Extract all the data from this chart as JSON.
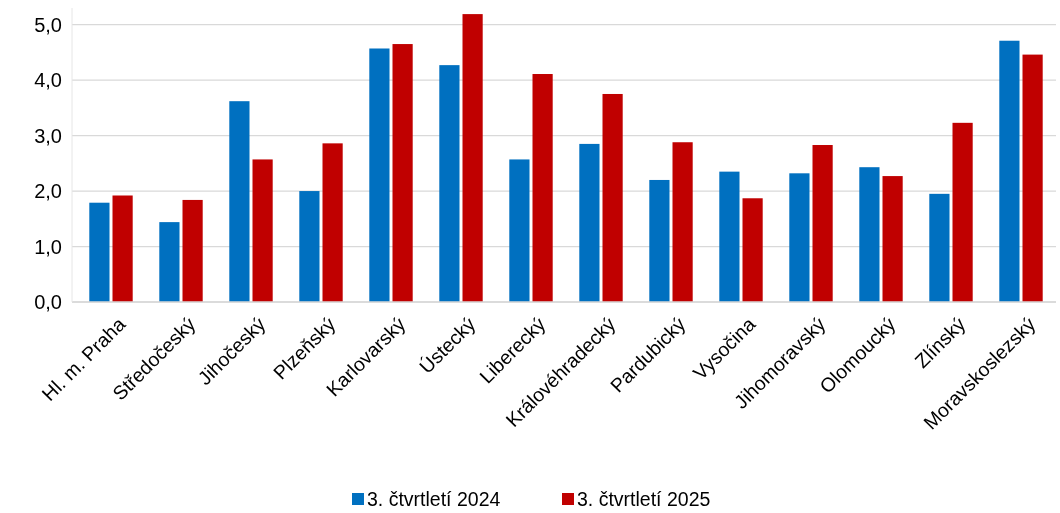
{
  "chart_data": {
    "type": "bar",
    "categories": [
      "Hl. m. Praha",
      "Středočeský",
      "Jihočeský",
      "Plzeňský",
      "Karlovarský",
      "Ústecký",
      "Liberecký",
      "Královéhradecký",
      "Pardubický",
      "Vysočina",
      "Jihomoravský",
      "Olomoucký",
      "Zlínský",
      "Moravskoslezský"
    ],
    "series": [
      {
        "name": "3. čtvrtletí 2024",
        "color": "#0070c0",
        "values": [
          1.79,
          1.44,
          3.62,
          2.0,
          4.57,
          4.27,
          2.57,
          2.85,
          2.2,
          2.35,
          2.32,
          2.43,
          1.95,
          4.71
        ]
      },
      {
        "name": "3. čtvrtletí 2025",
        "color": "#c00000",
        "values": [
          1.92,
          1.84,
          2.57,
          2.86,
          4.65,
          5.19,
          4.11,
          3.75,
          2.88,
          1.87,
          2.83,
          2.27,
          3.23,
          4.46
        ]
      }
    ],
    "ylim": [
      0,
      5.3
    ],
    "yticks": [
      {
        "value": 0,
        "label": "0,0"
      },
      {
        "value": 1,
        "label": "1,0"
      },
      {
        "value": 2,
        "label": "2,0"
      },
      {
        "value": 3,
        "label": "3,0"
      },
      {
        "value": 4,
        "label": "4,0"
      },
      {
        "value": 5,
        "label": "5,0"
      }
    ],
    "grid": "y",
    "legend": "bottom"
  }
}
